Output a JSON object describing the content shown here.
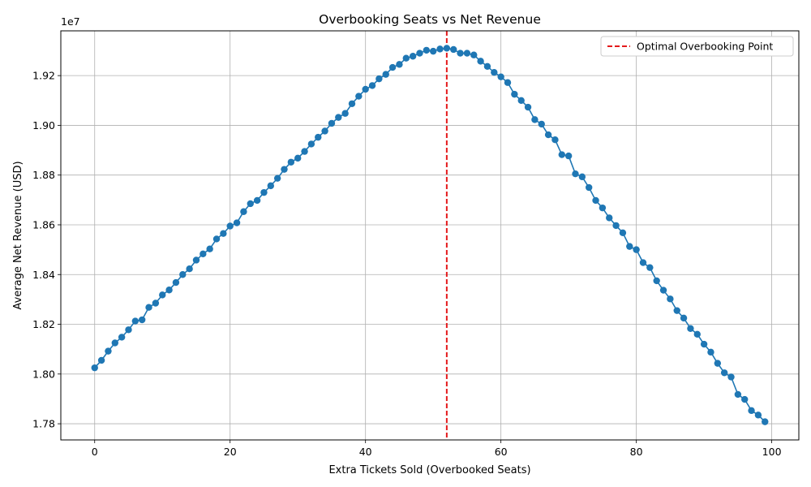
{
  "chart_data": {
    "type": "line",
    "title": "Overbooking Seats vs Net Revenue",
    "xlabel": "Extra Tickets Sold (Overbooked Seats)",
    "ylabel": "Average Net Revenue (USD)",
    "y_offset_label": "1e7",
    "y_scale_factor": 10000000,
    "xlim": [
      -5,
      104
    ],
    "ylim": [
      17.735,
      19.38
    ],
    "xticks": [
      0,
      20,
      40,
      60,
      80,
      100
    ],
    "xtick_labels": [
      "0",
      "20",
      "40",
      "60",
      "80",
      "100"
    ],
    "yticks": [
      1.78,
      1.8,
      1.82,
      1.84,
      1.86,
      1.88,
      1.9,
      1.92
    ],
    "ytick_labels": [
      "1.78",
      "1.80",
      "1.82",
      "1.84",
      "1.86",
      "1.88",
      "1.90",
      "1.92"
    ],
    "grid": true,
    "legend_position": "top-right",
    "series": [
      {
        "type": "line-with-markers",
        "color": "#1f77b4",
        "x": [
          0,
          1,
          2,
          3,
          4,
          5,
          6,
          7,
          8,
          9,
          10,
          11,
          12,
          13,
          14,
          15,
          16,
          17,
          18,
          19,
          20,
          21,
          22,
          23,
          24,
          25,
          26,
          27,
          28,
          29,
          30,
          31,
          32,
          33,
          34,
          35,
          36,
          37,
          38,
          39,
          40,
          41,
          42,
          43,
          44,
          45,
          46,
          47,
          48,
          49,
          50,
          51,
          52,
          53,
          54,
          55,
          56,
          57,
          58,
          59,
          60,
          61,
          62,
          63,
          64,
          65,
          66,
          67,
          68,
          69,
          70,
          71,
          72,
          73,
          74,
          75,
          76,
          77,
          78,
          79,
          80,
          81,
          82,
          83,
          84,
          85,
          86,
          87,
          88,
          89,
          90,
          91,
          92,
          93,
          94,
          95,
          96,
          97,
          98,
          99
        ],
        "y": [
          18.025,
          18.055,
          18.092,
          18.125,
          18.148,
          18.178,
          18.213,
          18.218,
          18.268,
          18.285,
          18.318,
          18.338,
          18.368,
          18.4,
          18.423,
          18.458,
          18.483,
          18.503,
          18.543,
          18.565,
          18.595,
          18.608,
          18.653,
          18.685,
          18.698,
          18.73,
          18.757,
          18.787,
          18.823,
          18.852,
          18.868,
          18.895,
          18.925,
          18.952,
          18.977,
          19.008,
          19.032,
          19.048,
          19.087,
          19.117,
          19.145,
          19.16,
          19.187,
          19.205,
          19.233,
          19.245,
          19.27,
          19.278,
          19.29,
          19.302,
          19.298,
          19.307,
          19.31,
          19.305,
          19.29,
          19.29,
          19.283,
          19.258,
          19.237,
          19.213,
          19.195,
          19.172,
          19.125,
          19.1,
          19.073,
          19.023,
          19.005,
          18.962,
          18.942,
          18.882,
          18.877,
          18.805,
          18.793,
          18.75,
          18.698,
          18.668,
          18.628,
          18.597,
          18.568,
          18.513,
          18.5,
          18.448,
          18.428,
          18.375,
          18.337,
          18.302,
          18.255,
          18.225,
          18.183,
          18.16,
          18.12,
          18.088,
          18.043,
          18.005,
          17.988,
          17.918,
          17.898,
          17.853,
          17.835,
          17.808
        ]
      },
      {
        "name": "Optimal Overbooking Point",
        "type": "vline",
        "x": 52,
        "color": "#e41a1c",
        "style": "dashed"
      }
    ]
  }
}
